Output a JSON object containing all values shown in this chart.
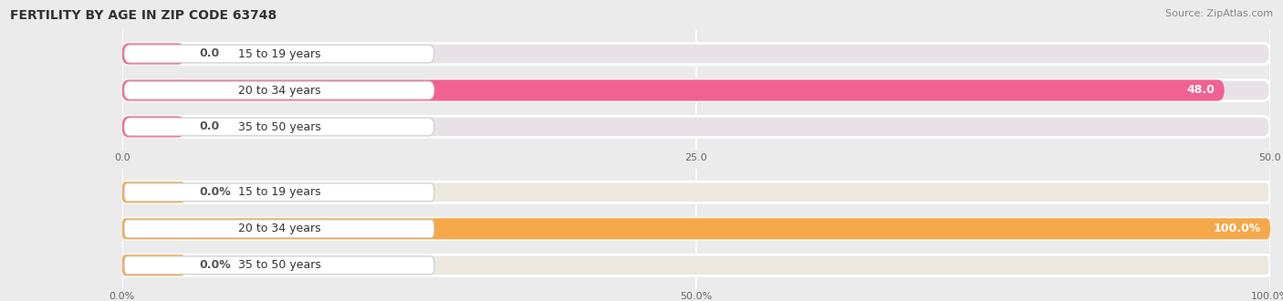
{
  "title": "FERTILITY BY AGE IN ZIP CODE 63748",
  "source": "Source: ZipAtlas.com",
  "top_chart": {
    "categories": [
      "15 to 19 years",
      "20 to 34 years",
      "35 to 50 years"
    ],
    "values": [
      0.0,
      48.0,
      0.0
    ],
    "bar_color": "#f06292",
    "bar_bg_color": "#e8e2e6",
    "label_color": "#555555",
    "xlim": [
      0,
      50
    ],
    "xticks": [
      0.0,
      25.0,
      50.0
    ],
    "xtick_labels": [
      "0.0",
      "25.0",
      "50.0"
    ]
  },
  "bottom_chart": {
    "categories": [
      "15 to 19 years",
      "20 to 34 years",
      "35 to 50 years"
    ],
    "values": [
      0.0,
      100.0,
      0.0
    ],
    "bar_color": "#f5a84a",
    "bar_bg_color": "#ede8e0",
    "label_color": "#555555",
    "xlim": [
      0,
      100
    ],
    "xticks": [
      0.0,
      50.0,
      100.0
    ],
    "xtick_labels": [
      "0.0%",
      "50.0%",
      "100.0%"
    ]
  },
  "fig_bg_color": "#ebebeb",
  "title_fontsize": 10,
  "source_fontsize": 8,
  "label_fontsize": 9,
  "tick_fontsize": 8,
  "bar_height": 0.58
}
